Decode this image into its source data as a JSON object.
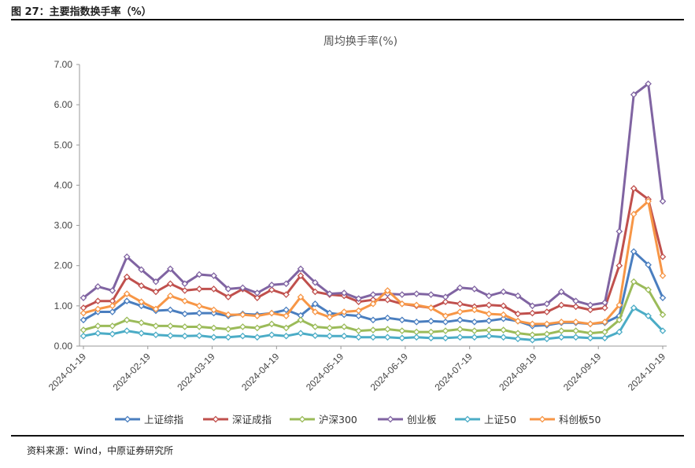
{
  "figure": {
    "label": "图 27：主要指数换手率（%）",
    "source": "资料来源：Wind，中原证券研究所"
  },
  "chart_data": {
    "type": "line",
    "title": "周均换手率(%)",
    "xlabel": "",
    "ylabel": "",
    "ylim": [
      0,
      7
    ],
    "yticks": [
      "0.00",
      "1.00",
      "2.00",
      "3.00",
      "4.00",
      "5.00",
      "6.00",
      "7.00"
    ],
    "x_tick_labels": [
      "2024-01-19",
      "2024-02-19",
      "2024-03-19",
      "2024-04-19",
      "2024-05-19",
      "2024-06-19",
      "2024-07-19",
      "2024-08-19",
      "2024-09-19",
      "2024-10-19"
    ],
    "grid": false,
    "legend_position": "bottom",
    "marker": "diamond",
    "series": [
      {
        "name": "上证综指",
        "color": "#4a7ebf",
        "values": [
          0.65,
          0.85,
          0.85,
          1.12,
          1.0,
          0.88,
          0.9,
          0.8,
          0.82,
          0.82,
          0.75,
          0.8,
          0.78,
          0.82,
          0.9,
          0.76,
          1.05,
          0.82,
          0.78,
          0.75,
          0.65,
          0.7,
          0.65,
          0.6,
          0.62,
          0.6,
          0.65,
          0.6,
          0.63,
          0.68,
          0.62,
          0.5,
          0.52,
          0.58,
          0.58,
          0.55,
          0.58,
          0.75,
          2.35,
          2.02,
          1.2
        ]
      },
      {
        "name": "深证成指",
        "color": "#c0504d",
        "values": [
          0.95,
          1.12,
          1.12,
          1.72,
          1.5,
          1.35,
          1.55,
          1.38,
          1.42,
          1.42,
          1.22,
          1.42,
          1.2,
          1.4,
          1.28,
          1.75,
          1.35,
          1.28,
          1.25,
          1.1,
          1.15,
          1.15,
          1.05,
          1.0,
          0.95,
          1.1,
          1.05,
          0.98,
          1.02,
          1.0,
          0.8,
          0.82,
          0.85,
          1.02,
          0.98,
          0.9,
          0.95,
          2.0,
          3.92,
          3.65,
          2.22
        ]
      },
      {
        "name": "沪深300",
        "color": "#9bbb59",
        "values": [
          0.4,
          0.5,
          0.5,
          0.65,
          0.58,
          0.5,
          0.5,
          0.48,
          0.48,
          0.45,
          0.42,
          0.48,
          0.45,
          0.55,
          0.45,
          0.65,
          0.48,
          0.45,
          0.48,
          0.38,
          0.4,
          0.42,
          0.38,
          0.35,
          0.35,
          0.38,
          0.42,
          0.38,
          0.4,
          0.4,
          0.32,
          0.28,
          0.3,
          0.38,
          0.38,
          0.32,
          0.35,
          0.65,
          1.6,
          1.4,
          0.78
        ]
      },
      {
        "name": "创业板",
        "color": "#8064a2",
        "values": [
          1.2,
          1.48,
          1.38,
          2.22,
          1.9,
          1.6,
          1.92,
          1.55,
          1.78,
          1.75,
          1.42,
          1.45,
          1.32,
          1.52,
          1.55,
          1.92,
          1.58,
          1.3,
          1.32,
          1.18,
          1.28,
          1.3,
          1.28,
          1.3,
          1.28,
          1.22,
          1.45,
          1.42,
          1.25,
          1.35,
          1.25,
          1.0,
          1.05,
          1.35,
          1.12,
          1.02,
          1.08,
          2.85,
          6.25,
          6.52,
          3.6
        ]
      },
      {
        "name": "上证50",
        "color": "#4bacc6",
        "values": [
          0.25,
          0.32,
          0.3,
          0.38,
          0.32,
          0.28,
          0.26,
          0.25,
          0.26,
          0.22,
          0.22,
          0.25,
          0.22,
          0.28,
          0.25,
          0.32,
          0.26,
          0.25,
          0.25,
          0.22,
          0.22,
          0.22,
          0.2,
          0.22,
          0.2,
          0.2,
          0.22,
          0.22,
          0.25,
          0.22,
          0.18,
          0.15,
          0.18,
          0.22,
          0.22,
          0.2,
          0.2,
          0.35,
          0.95,
          0.75,
          0.38
        ]
      },
      {
        "name": "科创板50",
        "color": "#f79646",
        "values": [
          0.82,
          0.92,
          1.0,
          1.3,
          1.1,
          0.92,
          1.25,
          1.12,
          1.0,
          0.9,
          0.78,
          0.78,
          0.75,
          0.82,
          0.75,
          1.22,
          0.85,
          0.72,
          0.85,
          0.88,
          1.05,
          1.38,
          1.05,
          1.02,
          0.95,
          0.75,
          0.85,
          0.9,
          0.8,
          0.78,
          0.62,
          0.55,
          0.55,
          0.6,
          0.6,
          0.55,
          0.6,
          1.02,
          3.28,
          3.6,
          1.75
        ]
      }
    ]
  }
}
